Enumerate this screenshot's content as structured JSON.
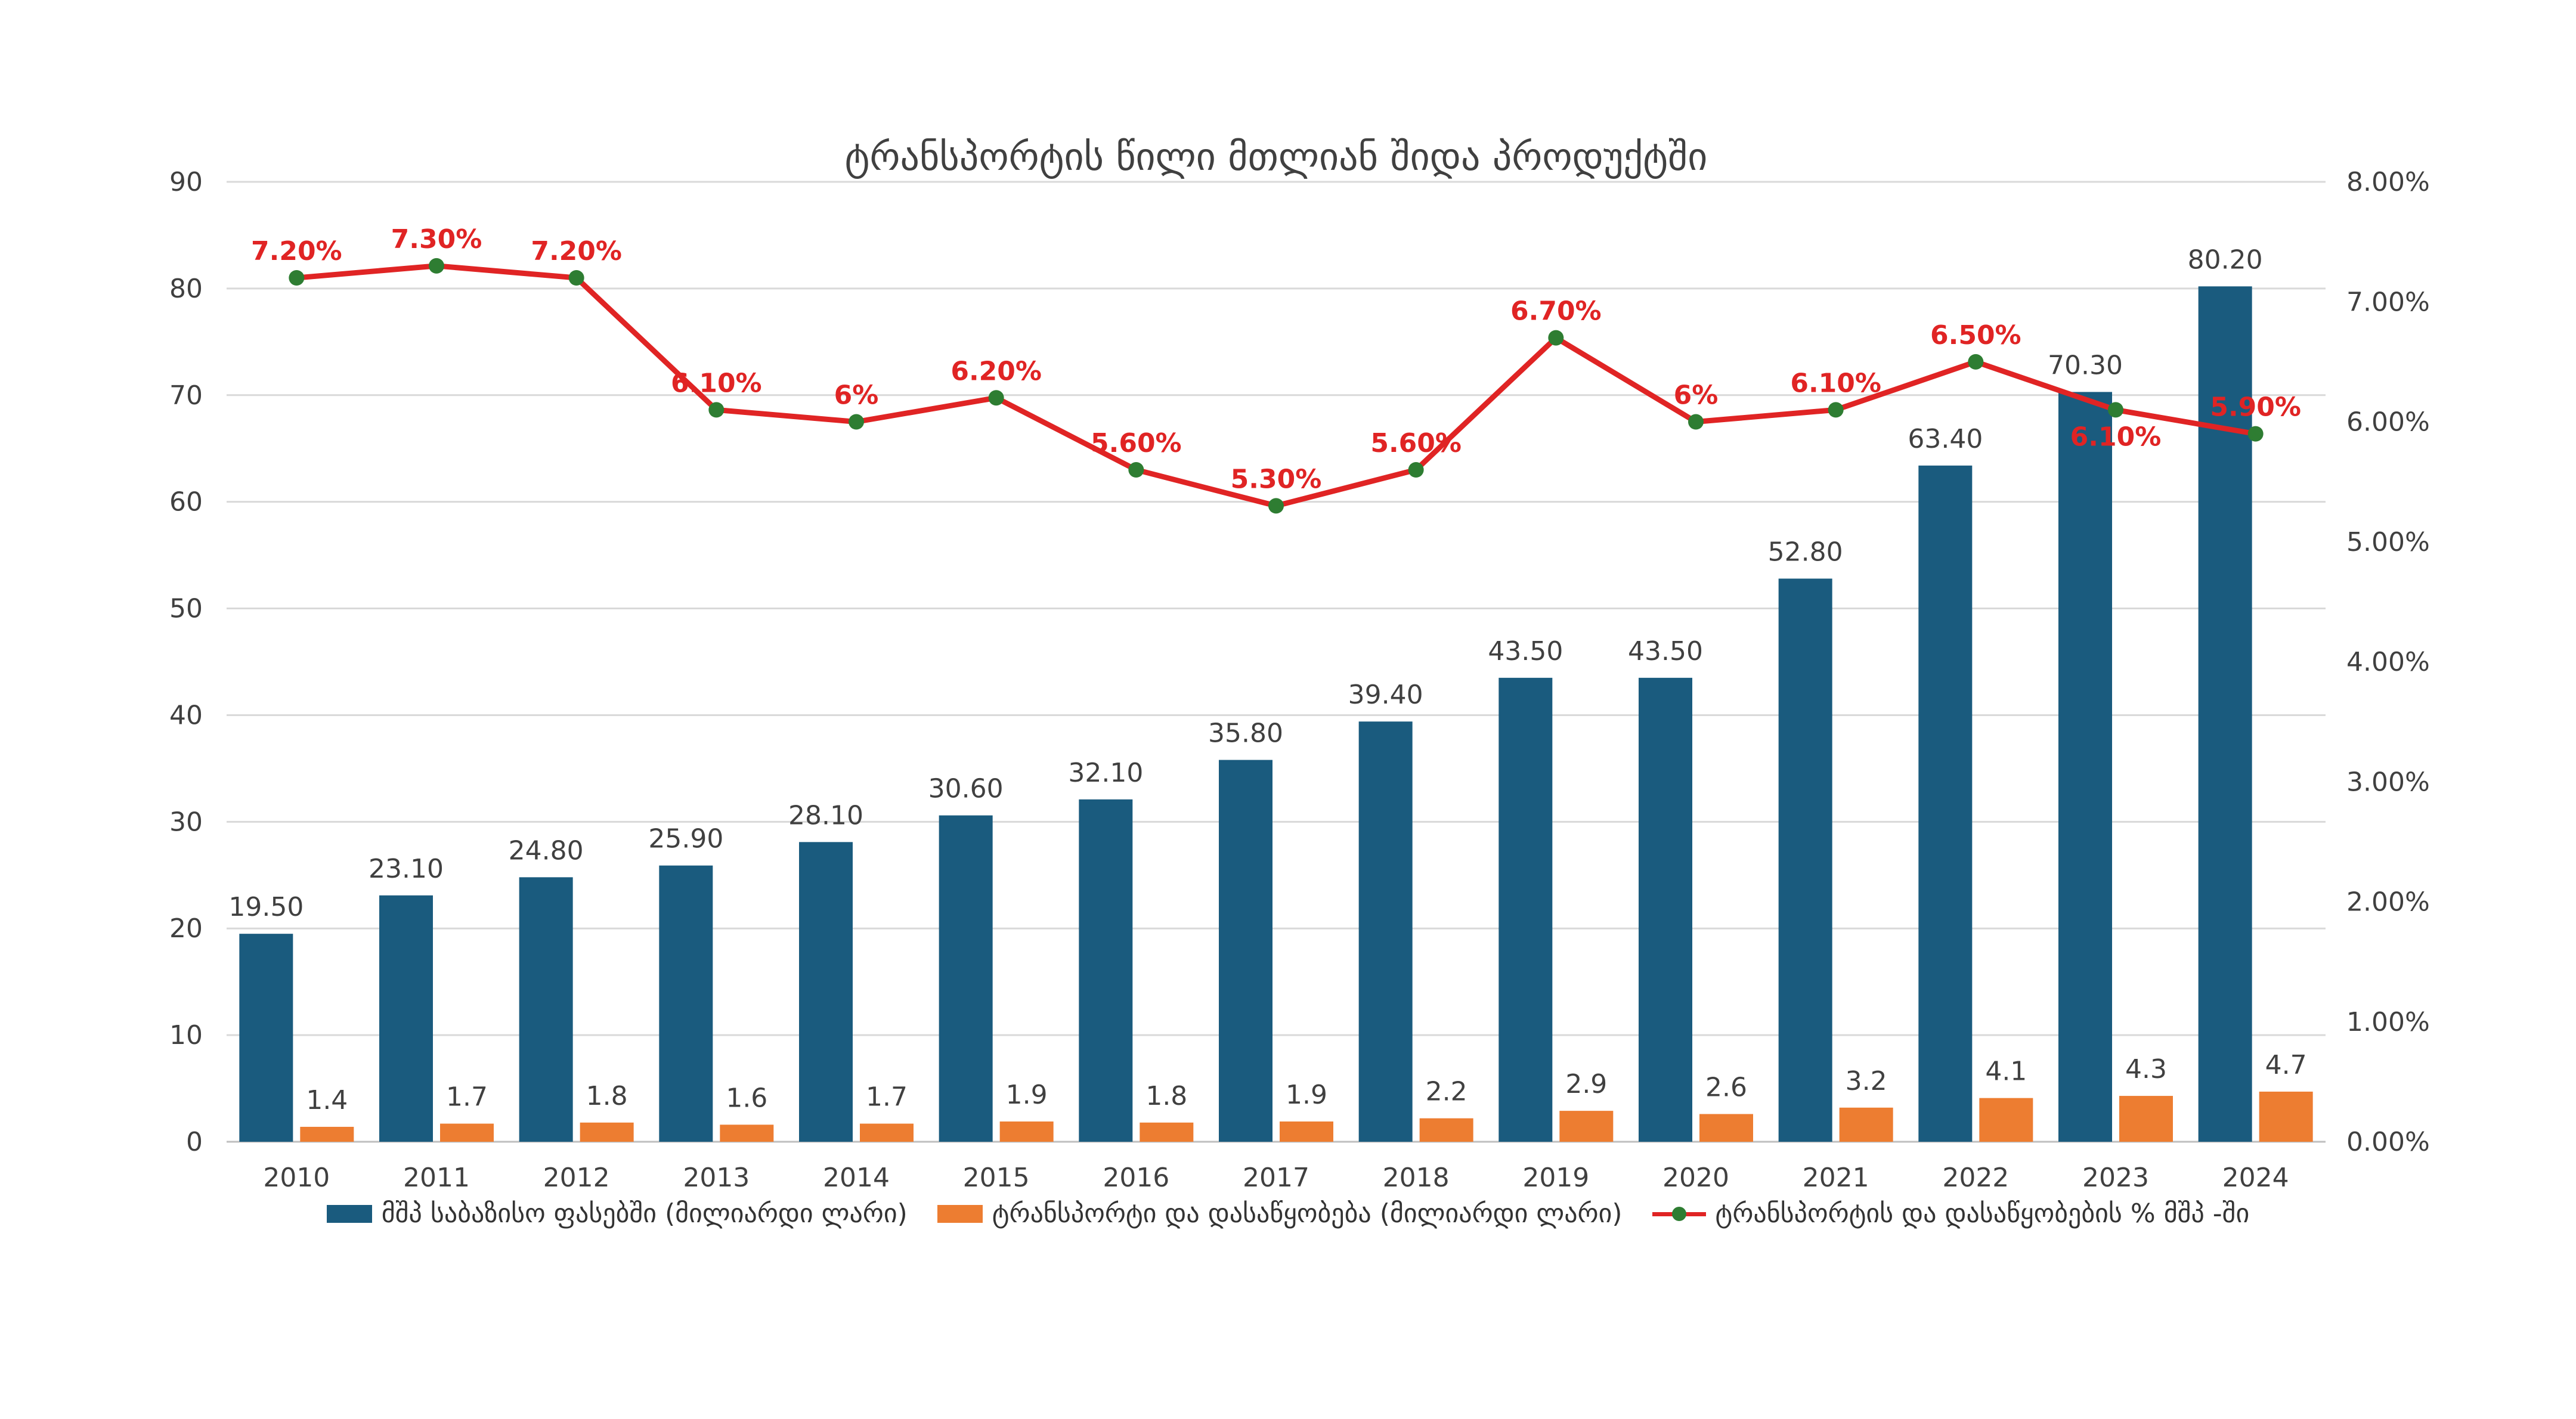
{
  "chart_data": {
    "type": "bar",
    "title": "ტრანსპორტის წილი მთლიან შიდა პროდუქტში",
    "categories": [
      "2010",
      "2011",
      "2012",
      "2013",
      "2014",
      "2015",
      "2016",
      "2017",
      "2018",
      "2019",
      "2020",
      "2021",
      "2022",
      "2023",
      "2024"
    ],
    "series": [
      {
        "name": "მშპ საბაზისო ფასებში (მილიარდი ლარი)",
        "type": "bar",
        "axis": "left",
        "color": "#1a5b7e",
        "values": [
          19.5,
          23.1,
          24.8,
          25.9,
          28.1,
          30.6,
          32.1,
          35.8,
          39.4,
          43.5,
          43.5,
          52.8,
          63.4,
          70.3,
          80.2
        ],
        "labels": [
          "19.50",
          "23.10",
          "24.80",
          "25.90",
          "28.10",
          "30.60",
          "32.10",
          "35.80",
          "39.40",
          "43.50",
          "43.50",
          "52.80",
          "63.40",
          "70.30",
          "80.20"
        ]
      },
      {
        "name": "ტრანსპორტი და დასაწყობება (მილიარდი ლარი)",
        "type": "bar",
        "axis": "left",
        "color": "#ed7d31",
        "values": [
          1.4,
          1.7,
          1.8,
          1.6,
          1.7,
          1.9,
          1.8,
          1.9,
          2.2,
          2.9,
          2.6,
          3.2,
          4.1,
          4.3,
          4.7
        ],
        "labels": [
          "1.4",
          "1.7",
          "1.8",
          "1.6",
          "1.7",
          "1.9",
          "1.8",
          "1.9",
          "2.2",
          "2.9",
          "2.6",
          "3.2",
          "4.1",
          "4.3",
          "4.7"
        ]
      },
      {
        "name": "ტრანსპორტის და დასაწყობების % მშპ -ში",
        "type": "line",
        "axis": "right",
        "color": "#e02424",
        "marker_color": "#2e7d32",
        "values": [
          7.2,
          7.3,
          7.2,
          6.1,
          6.0,
          6.2,
          5.6,
          5.3,
          5.6,
          6.7,
          6.0,
          6.1,
          6.5,
          6.1,
          5.9
        ],
        "labels": [
          "7.20%",
          "7.30%",
          "7.20%",
          "6.10%",
          "6%",
          "6.20%",
          "5.60%",
          "5.30%",
          "5.60%",
          "6.70%",
          "6%",
          "6.10%",
          "6.50%",
          "6.10%",
          "5.90%"
        ]
      }
    ],
    "y_left": {
      "min": 0,
      "max": 90,
      "ticks": [
        "0",
        "10",
        "20",
        "30",
        "40",
        "50",
        "60",
        "70",
        "80",
        "90"
      ]
    },
    "y_right": {
      "min": 0,
      "max": 8,
      "ticks": [
        "0.00%",
        "1.00%",
        "2.00%",
        "3.00%",
        "4.00%",
        "5.00%",
        "6.00%",
        "7.00%",
        "8.00%"
      ]
    },
    "grid": true,
    "legend_position": "bottom"
  }
}
